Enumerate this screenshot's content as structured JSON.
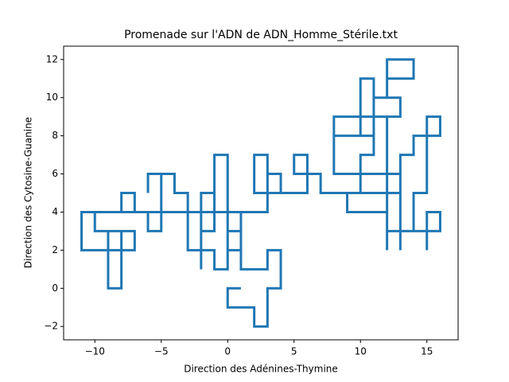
{
  "chart_data": {
    "type": "line",
    "title": "Promenade sur l'ADN de ADN_Homme_Stérile.txt",
    "xlabel": "Direction des Adénines-Thymine",
    "ylabel": "Direction des Cytosine-Guanine",
    "color": "#1f77b4",
    "x": [
      0,
      1,
      0,
      0,
      2,
      2,
      3,
      3,
      4,
      4,
      3,
      3,
      1,
      1,
      0,
      0,
      1,
      1,
      -1,
      -1,
      0,
      0,
      -1,
      -1,
      -2,
      -2,
      -2,
      -1,
      -1,
      -2,
      -2,
      -7,
      -7,
      -8,
      -8,
      -11,
      -11,
      -7,
      -7,
      -9,
      -9,
      -8,
      -8,
      -10,
      -10,
      -6,
      -6,
      -5,
      -5,
      -6,
      -6,
      -6,
      -4,
      -4,
      -3,
      -3,
      -2,
      -2,
      3,
      3,
      4,
      4,
      2,
      2,
      3,
      3,
      6,
      6,
      5,
      5,
      7,
      7,
      10,
      10,
      8,
      8,
      10,
      10,
      8,
      11,
      11,
      12,
      12,
      14,
      14,
      12,
      12,
      13,
      13,
      11,
      11,
      10,
      10,
      13,
      13,
      9,
      9,
      12,
      12,
      12,
      13,
      13,
      13,
      14,
      14,
      16,
      16,
      15,
      15,
      14,
      14,
      16,
      16,
      15,
      15,
      15,
      12,
      12,
      10,
      10,
      11,
      11
    ],
    "values": [
      0,
      0,
      0,
      -1,
      -1,
      -2,
      -2,
      0,
      0,
      2,
      2,
      1,
      1,
      3,
      3,
      2,
      2,
      4,
      4,
      7,
      7,
      1,
      1,
      2,
      2,
      1,
      5,
      5,
      3,
      3,
      4,
      4,
      5,
      5,
      4,
      4,
      2,
      2,
      3,
      3,
      0,
      0,
      3,
      3,
      4,
      4,
      3,
      3,
      6,
      6,
      5,
      6,
      6,
      5,
      5,
      2,
      2,
      4,
      4,
      6,
      6,
      5,
      5,
      7,
      7,
      5,
      5,
      7,
      7,
      6,
      6,
      5,
      5,
      6,
      6,
      9,
      9,
      8,
      8,
      8,
      10,
      10,
      12,
      12,
      11,
      11,
      10,
      10,
      9,
      9,
      7,
      7,
      6,
      6,
      5,
      5,
      4,
      4,
      2,
      3,
      3,
      2,
      7,
      7,
      8,
      8,
      9,
      9,
      5,
      5,
      3,
      3,
      4,
      4,
      2,
      3,
      3,
      9,
      9,
      11,
      11,
      9
    ],
    "xlim": [
      -12.35,
      17.35
    ],
    "ylim": [
      -2.7,
      12.7
    ],
    "xticks": [
      {
        "value": -10,
        "label": "−10"
      },
      {
        "value": -5,
        "label": "−5"
      },
      0,
      5,
      10,
      15
    ],
    "yticks": [
      {
        "value": -2,
        "label": "−2"
      },
      0,
      2,
      4,
      6,
      8,
      10,
      12
    ]
  }
}
